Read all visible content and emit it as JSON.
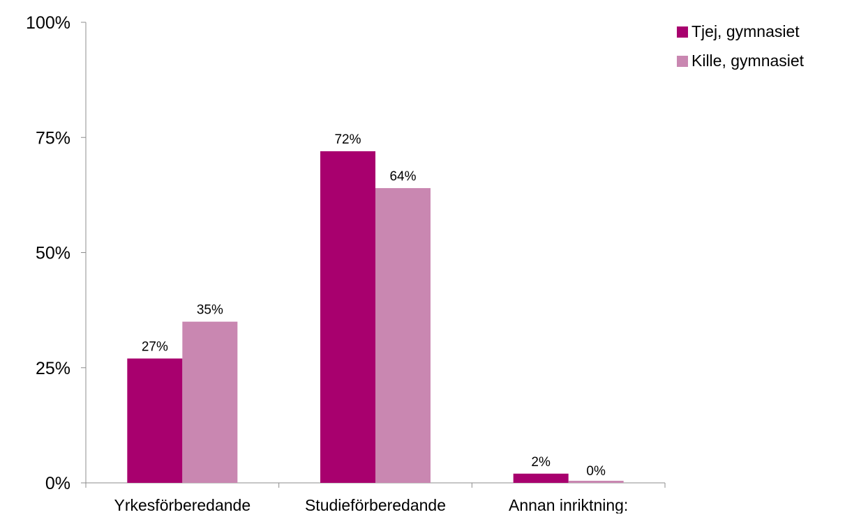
{
  "chart_data": {
    "type": "bar",
    "categories": [
      "Yrkesförberedande",
      "Studieförberedande",
      "Annan inriktning:"
    ],
    "series": [
      {
        "name": "Tjej, gymnasiet",
        "color": "#A8006E",
        "values": [
          27,
          72,
          2
        ],
        "labels": [
          "27%",
          "72%",
          "2%"
        ]
      },
      {
        "name": "Kille, gymnasiet",
        "color": "#C987B1",
        "values": [
          35,
          64,
          0
        ],
        "labels": [
          "35%",
          "64%",
          "0%"
        ]
      }
    ],
    "yticks": [
      0,
      25,
      50,
      75,
      100
    ],
    "ytick_labels": [
      "0%",
      "25%",
      "50%",
      "75%",
      "100%"
    ],
    "ylim": [
      0,
      100
    ],
    "grid": false,
    "legend_position": "top-right"
  }
}
